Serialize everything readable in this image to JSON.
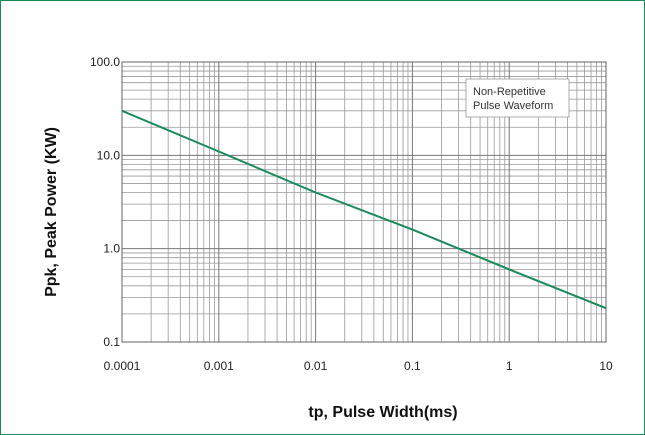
{
  "chart_data": {
    "type": "line",
    "xlabel": "tp, Pulse Width(ms)",
    "ylabel": "Ppk, Peak Power (KW)",
    "x_scale": "log",
    "y_scale": "log",
    "xlim": [
      0.0001,
      10
    ],
    "ylim": [
      0.1,
      100
    ],
    "x_ticks": [
      "0.0001",
      "0.001",
      "0.01",
      "0.1",
      "1",
      "10"
    ],
    "x_tick_values": [
      0.0001,
      0.001,
      0.01,
      0.1,
      1,
      10
    ],
    "y_ticks": [
      "0.1",
      "1.0",
      "10.0",
      "100.0"
    ],
    "y_tick_values": [
      0.1,
      1,
      10,
      100
    ],
    "grid": true,
    "annotation": [
      "Non-Repetitive",
      "Pulse Waveform"
    ],
    "series": [
      {
        "x": [
          0.0001,
          0.001,
          0.01,
          0.1,
          1,
          10
        ],
        "y": [
          30,
          11,
          4,
          1.6,
          0.6,
          0.23
        ],
        "color": "#1a8a5a"
      }
    ],
    "colors": {
      "line": "#1a8a5a",
      "frame": "#1a8a5a",
      "grid": "#888888"
    }
  }
}
